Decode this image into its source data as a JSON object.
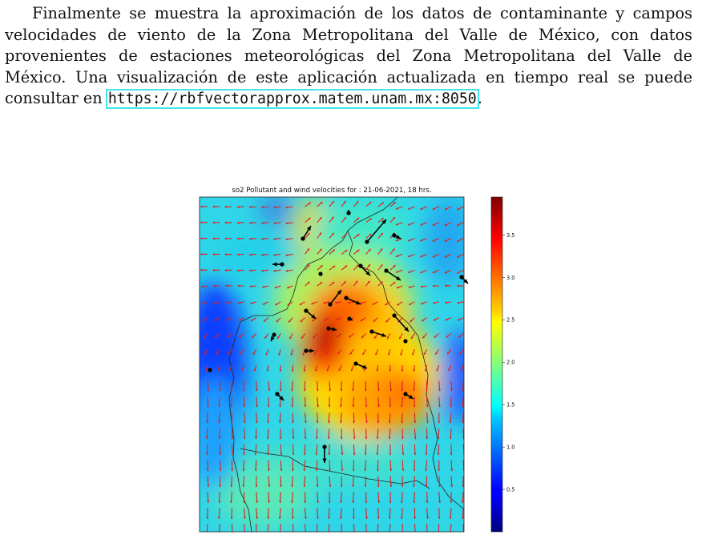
{
  "paragraph": {
    "text_before_link": "Finalmente se muestra la aproximación de los datos de contaminante y campos velocidades de viento de la Zona Metropolitana del Valle de México, con datos provenientes de estaciones meteorológicas del Zona Metropolitana del Valle de México. Una visualización de este aplicación actualizada en tiempo real se puede consultar en ",
    "link_text": "https://rbfvectorapprox.matem.unam.mx:8050",
    "text_after_link": "."
  },
  "colors": {
    "link_outline": "#41e6ea",
    "wind_vector": "#e02020",
    "station_vector": "#000000"
  },
  "figure": {
    "title": "so2 Pollutant and wind velocities for : 21-06-2021, 18 hrs.",
    "colorbar": {
      "colormap": "jet",
      "range": [
        0,
        3.95
      ],
      "ticks": [
        "0.5",
        "1.0",
        "1.5",
        "2.0",
        "2.5",
        "3.0",
        "3.5"
      ]
    }
  }
}
